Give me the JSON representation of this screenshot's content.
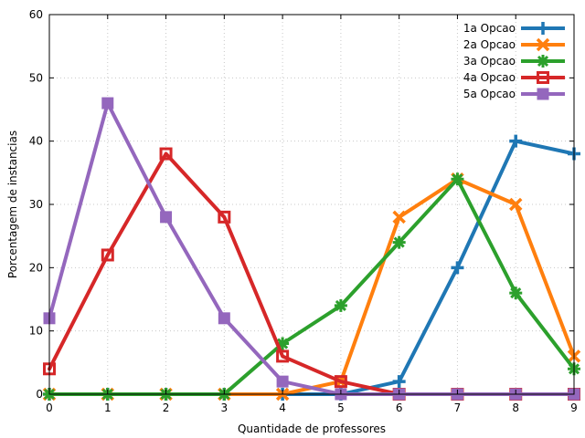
{
  "chart_data": {
    "type": "line",
    "xlabel": "Quantidade de professores",
    "ylabel": "Porcentagem de instancias",
    "x": [
      0,
      1,
      2,
      3,
      4,
      5,
      6,
      7,
      8,
      9
    ],
    "xlim": [
      0,
      9
    ],
    "ylim": [
      0,
      60
    ],
    "xticks": [
      0,
      1,
      2,
      3,
      4,
      5,
      6,
      7,
      8,
      9
    ],
    "yticks": [
      0,
      10,
      20,
      30,
      40,
      50,
      60
    ],
    "grid": true,
    "legend_position": "top-right",
    "series": [
      {
        "name": "1a Opcao",
        "color": "#1f77b4",
        "marker": "plus",
        "x": [
          0,
          1,
          2,
          3,
          4,
          5,
          6,
          7,
          8,
          9
        ],
        "values": [
          0,
          0,
          0,
          0,
          0,
          0,
          2,
          20,
          40,
          38
        ]
      },
      {
        "name": "2a Opcao",
        "color": "#ff7f0e",
        "marker": "cross",
        "x": [
          0,
          1,
          2,
          3,
          4,
          5,
          6,
          7,
          8,
          9
        ],
        "values": [
          0,
          0,
          0,
          0,
          0,
          2,
          28,
          34,
          30,
          6
        ]
      },
      {
        "name": "3a Opcao",
        "color": "#2ca02c",
        "marker": "star",
        "x": [
          0,
          1,
          2,
          3,
          4,
          5,
          6,
          7,
          8,
          9
        ],
        "values": [
          0,
          0,
          0,
          0,
          8,
          14,
          24,
          34,
          16,
          4
        ]
      },
      {
        "name": "4a Opcao",
        "color": "#d62728",
        "marker": "open-square",
        "x": [
          0,
          1,
          2,
          3,
          4,
          5,
          6,
          7,
          8,
          9
        ],
        "values": [
          4,
          22,
          38,
          28,
          6,
          2,
          0,
          0,
          0,
          0
        ]
      },
      {
        "name": "5a Opcao",
        "color": "#9467bd",
        "marker": "filled-square",
        "x": [
          0,
          1,
          2,
          3,
          4,
          5,
          6,
          7,
          8,
          9
        ],
        "values": [
          12,
          46,
          28,
          12,
          2,
          0,
          0,
          0,
          0,
          0
        ]
      }
    ]
  }
}
